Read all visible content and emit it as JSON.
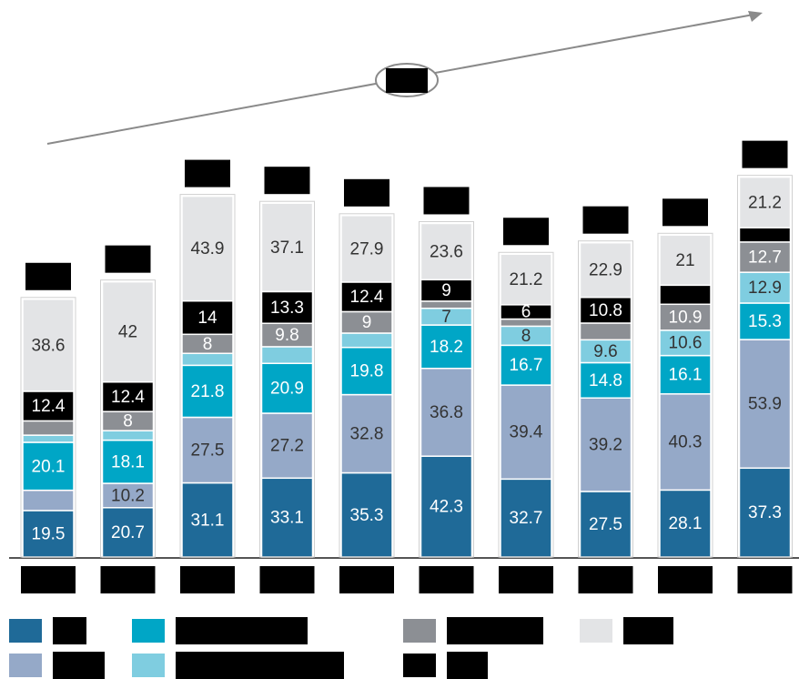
{
  "chart_data": {
    "type": "stacked_bar",
    "categories": [
      null,
      null,
      null,
      null,
      null,
      null,
      null,
      null,
      null,
      null
    ],
    "series": [
      {
        "name": null,
        "color": "#1f6a98",
        "values": [
          19.5,
          20.7,
          31.1,
          33.1,
          35.3,
          42.3,
          32.7,
          27.5,
          28.1,
          37.3
        ],
        "value_labels": [
          "19.5",
          "20.7",
          "31.1",
          "33.1",
          "35.3",
          "42.3",
          "32.7",
          "27.5",
          "28.1",
          "37.3"
        ]
      },
      {
        "name": null,
        "color": "#95a9c8",
        "values": [
          8.5,
          10.2,
          27.5,
          27.2,
          32.8,
          36.8,
          39.4,
          39.2,
          40.3,
          53.9
        ],
        "value_labels": [
          null,
          "10.2",
          "27.5",
          "27.2",
          "32.8",
          "36.8",
          "39.4",
          "39.2",
          "40.3",
          "53.9"
        ]
      },
      {
        "name": null,
        "color": "#00a6c6",
        "values": [
          20.1,
          18.1,
          21.8,
          20.9,
          19.8,
          18.2,
          16.7,
          14.8,
          16.1,
          15.3
        ],
        "value_labels": [
          "20.1",
          "18.1",
          "21.8",
          "20.9",
          "19.8",
          "18.2",
          "16.7",
          "14.8",
          "16.1",
          "15.3"
        ]
      },
      {
        "name": null,
        "color": "#7fcde0",
        "values": [
          3,
          4,
          5,
          7,
          6,
          7,
          8,
          9.6,
          10.6,
          12.9
        ],
        "value_labels": [
          null,
          null,
          null,
          null,
          null,
          "7",
          "8",
          "9.6",
          "10.6",
          "12.9"
        ]
      },
      {
        "name": null,
        "color": "#8c8f94",
        "values": [
          6,
          8,
          8,
          9.8,
          9,
          3,
          3,
          7,
          10.9,
          12.7
        ],
        "value_labels": [
          null,
          "8",
          "8",
          "9.8",
          "9",
          null,
          null,
          null,
          "10.9",
          "12.7"
        ]
      },
      {
        "name": null,
        "color": "#000000",
        "values": [
          12.4,
          12.4,
          14,
          13.3,
          12.4,
          9,
          6,
          10.8,
          8,
          6
        ],
        "value_labels": [
          "12.4",
          "12.4",
          "14",
          "13.3",
          "12.4",
          "9",
          "6",
          "10.8",
          null,
          null
        ]
      },
      {
        "name": null,
        "color": "#e3e4e6",
        "values": [
          38.6,
          42,
          43.9,
          37.1,
          27.9,
          23.6,
          21.2,
          22.9,
          21,
          21.2
        ],
        "value_labels": [
          "38.6",
          "42",
          "43.9",
          "37.1",
          "27.9",
          "23.6",
          "21.2",
          "22.9",
          "21",
          "21.2"
        ]
      }
    ]
  }
}
